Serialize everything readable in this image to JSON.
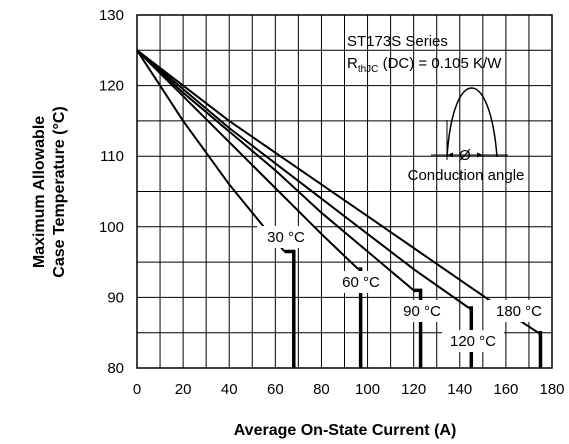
{
  "chart_data": {
    "type": "line",
    "title": "ST173S Series",
    "subtitle": {
      "prefix": "R",
      "subscript": "thJC",
      "suffix": " (DC) = 0.105 K/W"
    },
    "xlabel": "Average On-State Current (A)",
    "ylabel_lines": [
      "Maximum Allowable",
      "Case Temperature (°C)"
    ],
    "xlim": [
      0,
      180
    ],
    "ylim": [
      80,
      130
    ],
    "xticks": [
      0,
      20,
      40,
      60,
      80,
      100,
      120,
      140,
      160,
      180
    ],
    "yticks": [
      80,
      90,
      100,
      110,
      120,
      130
    ],
    "grid": true,
    "inset_caption": "Conduction angle",
    "inset_symbol": "Ø",
    "series": [
      {
        "name": "30 °C",
        "x": [
          0,
          10,
          20,
          30,
          40,
          50,
          60,
          64
        ],
        "y": [
          125,
          120,
          115,
          110.5,
          106,
          102,
          98,
          96.5
        ],
        "drop_x": 68,
        "drop_top_y": 96.5,
        "label": "30 °C"
      },
      {
        "name": "60 °C",
        "x": [
          0,
          20,
          40,
          60,
          80,
          96
        ],
        "y": [
          125,
          118.5,
          112,
          105.5,
          99,
          94
        ],
        "drop_x": 97,
        "drop_top_y": 94,
        "label": "60 °C"
      },
      {
        "name": "90 °C",
        "x": [
          0,
          20,
          40,
          60,
          80,
          100,
          120
        ],
        "y": [
          125,
          119,
          113.5,
          108,
          102,
          96.5,
          91
        ],
        "drop_x": 123,
        "drop_top_y": 91,
        "label": "90 °C"
      },
      {
        "name": "120 °C",
        "x": [
          0,
          20,
          40,
          60,
          80,
          100,
          120,
          144
        ],
        "y": [
          125,
          119.5,
          114,
          109,
          104,
          99,
          94,
          88.5
        ],
        "drop_x": 145,
        "drop_top_y": 88.5,
        "label": "120 °C"
      },
      {
        "name": "180 °C",
        "x": [
          0,
          20,
          40,
          60,
          80,
          100,
          120,
          140,
          160,
          174
        ],
        "y": [
          125,
          120,
          115,
          110.5,
          106,
          101.5,
          97,
          92.5,
          88,
          85
        ],
        "drop_x": 175,
        "drop_top_y": 85,
        "label": "180 °C"
      }
    ]
  }
}
